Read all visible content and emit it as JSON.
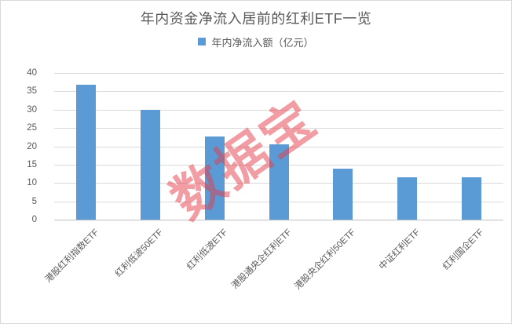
{
  "chart": {
    "title": "年内资金净流入居前的红利ETF一览",
    "legend_label": "年内净流入额（亿元）",
    "watermark_text": "数据宝",
    "colors": {
      "bar": "#5B9BD5",
      "title_text": "#595959",
      "axis_text": "#595959",
      "gridline": "#D9D9D9",
      "axis_line": "#BFBFBF",
      "watermark": "rgba(228,60,72,0.5)"
    }
  },
  "chart_data": {
    "type": "bar",
    "title": "年内资金净流入居前的红利ETF一览",
    "legend": [
      "年内净流入额（亿元）"
    ],
    "legend_position": "top",
    "categories": [
      "港股红利指数ETF",
      "红利低波50ETF",
      "红利低波ETF",
      "港股通央企红利ETF",
      "港股央企红利50ETF",
      "中证红利ETF",
      "红利国企ETF"
    ],
    "series": [
      {
        "name": "年内净流入额（亿元）",
        "values": [
          36.9,
          30.0,
          22.6,
          20.6,
          14.0,
          11.6,
          11.6
        ]
      }
    ],
    "xlabel": "",
    "ylabel": "",
    "ylim": [
      0,
      40
    ],
    "yticks": [
      0,
      5,
      10,
      15,
      20,
      25,
      30,
      35,
      40
    ],
    "grid": true
  }
}
